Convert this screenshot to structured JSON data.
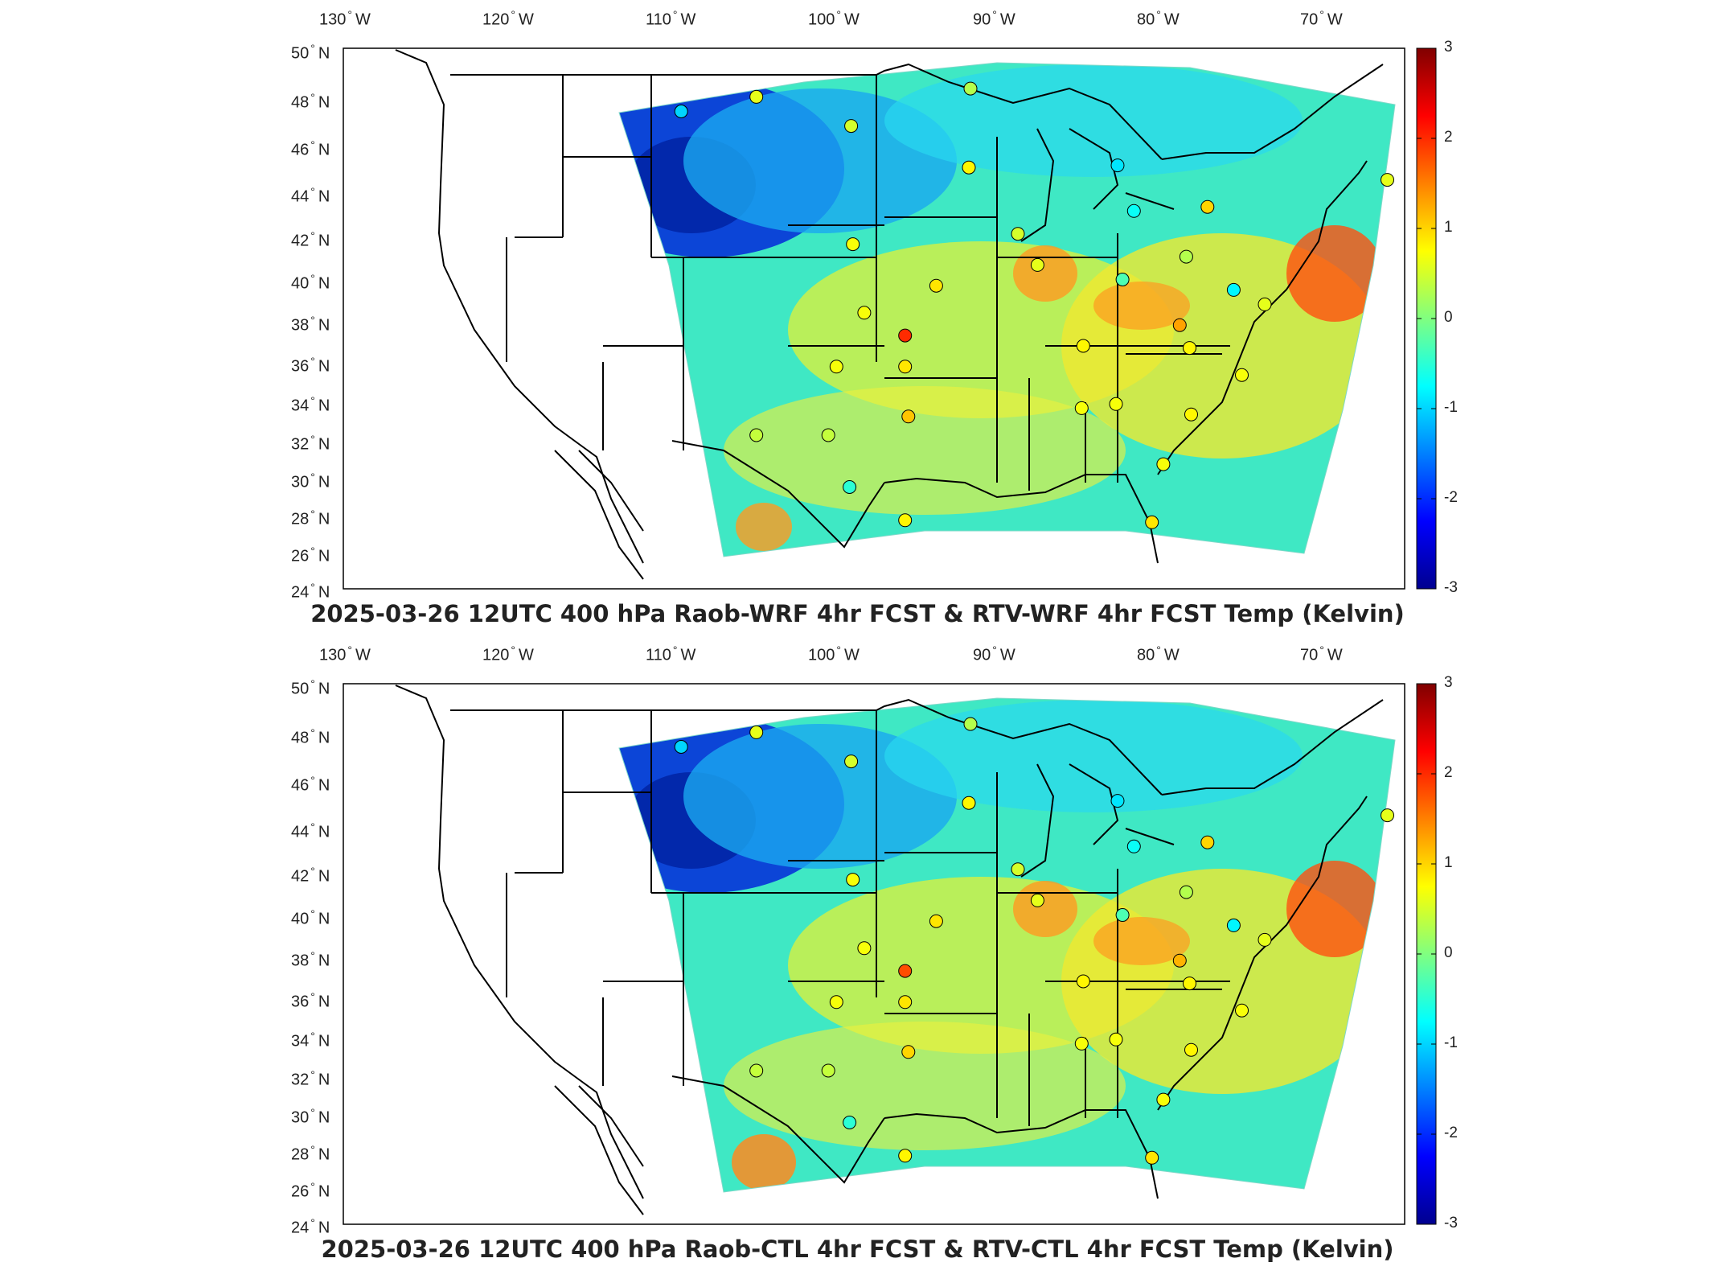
{
  "colors": {
    "colormap": [
      "#00008f",
      "#0000ff",
      "#0080ff",
      "#00ffff",
      "#80ff80",
      "#ffff00",
      "#ff8000",
      "#ff0000",
      "#800000"
    ],
    "map_lines": "#000000",
    "frame": "#000000"
  },
  "colorbar": {
    "min": -3,
    "max": 3,
    "ticks": [
      "3",
      "2",
      "1",
      "0",
      "-1",
      "-2",
      "-3"
    ]
  },
  "lon_labels": [
    "130",
    "120",
    "110",
    "100",
    "90",
    "80",
    "70"
  ],
  "lon_suffix": "W",
  "lat_labels": [
    "50",
    "48",
    "46",
    "44",
    "42",
    "40",
    "38",
    "36",
    "34",
    "32",
    "30",
    "28",
    "26",
    "24"
  ],
  "lat_suffix": "N",
  "panels": [
    {
      "title": "2025-03-26 12UTC 400 hPa Raob-WRF 4hr FCST & RTV-WRF 4hr FCST Temp (Kelvin)",
      "stations": [
        {
          "lon": -111.2,
          "lat": 47.5,
          "value": -1.0
        },
        {
          "lon": -106.6,
          "lat": 48.2,
          "value": 0.6
        },
        {
          "lon": -100.8,
          "lat": 46.8,
          "value": 0.5
        },
        {
          "lon": -93.5,
          "lat": 48.6,
          "value": 0.3
        },
        {
          "lon": -93.6,
          "lat": 44.8,
          "value": 0.8
        },
        {
          "lon": -84.5,
          "lat": 44.9,
          "value": -0.9
        },
        {
          "lon": -83.5,
          "lat": 42.7,
          "value": -0.7
        },
        {
          "lon": -79.0,
          "lat": 42.9,
          "value": 1.0
        },
        {
          "lon": -68.0,
          "lat": 44.2,
          "value": 0.6
        },
        {
          "lon": -100.7,
          "lat": 41.1,
          "value": 0.7
        },
        {
          "lon": -90.6,
          "lat": 41.6,
          "value": 0.5
        },
        {
          "lon": -89.4,
          "lat": 40.1,
          "value": 0.6
        },
        {
          "lon": -84.2,
          "lat": 39.4,
          "value": -0.3
        },
        {
          "lon": -80.3,
          "lat": 40.5,
          "value": 0.3
        },
        {
          "lon": -77.4,
          "lat": 38.9,
          "value": -0.8
        },
        {
          "lon": -75.5,
          "lat": 38.2,
          "value": 0.6
        },
        {
          "lon": -95.6,
          "lat": 39.1,
          "value": 0.9
        },
        {
          "lon": -100.0,
          "lat": 37.8,
          "value": 0.7
        },
        {
          "lon": -97.5,
          "lat": 36.7,
          "value": 2.0
        },
        {
          "lon": -97.5,
          "lat": 35.2,
          "value": 0.9
        },
        {
          "lon": -101.7,
          "lat": 35.2,
          "value": 0.7
        },
        {
          "lon": -97.3,
          "lat": 32.8,
          "value": 1.1
        },
        {
          "lon": -86.6,
          "lat": 36.2,
          "value": 0.8
        },
        {
          "lon": -80.7,
          "lat": 37.2,
          "value": 1.3
        },
        {
          "lon": -80.1,
          "lat": 36.1,
          "value": 0.8
        },
        {
          "lon": -76.9,
          "lat": 34.8,
          "value": 0.7
        },
        {
          "lon": -86.7,
          "lat": 33.2,
          "value": 0.7
        },
        {
          "lon": -84.6,
          "lat": 33.4,
          "value": 0.7
        },
        {
          "lon": -80.0,
          "lat": 32.9,
          "value": 0.8
        },
        {
          "lon": -81.7,
          "lat": 30.5,
          "value": 0.7
        },
        {
          "lon": -106.6,
          "lat": 31.9,
          "value": 0.4
        },
        {
          "lon": -102.2,
          "lat": 31.9,
          "value": 0.4
        },
        {
          "lon": -100.9,
          "lat": 29.4,
          "value": -0.5
        },
        {
          "lon": -97.5,
          "lat": 27.8,
          "value": 0.8
        },
        {
          "lon": -82.4,
          "lat": 27.7,
          "value": 0.9
        }
      ]
    },
    {
      "title": "2025-03-26 12UTC 400 hPa Raob-CTL 4hr FCST & RTV-CTL 4hr FCST Temp (Kelvin)",
      "stations": [
        {
          "lon": -111.2,
          "lat": 47.5,
          "value": -1.0
        },
        {
          "lon": -106.6,
          "lat": 48.2,
          "value": 0.6
        },
        {
          "lon": -100.8,
          "lat": 46.8,
          "value": 0.5
        },
        {
          "lon": -93.5,
          "lat": 48.6,
          "value": 0.3
        },
        {
          "lon": -93.6,
          "lat": 44.8,
          "value": 0.8
        },
        {
          "lon": -84.5,
          "lat": 44.9,
          "value": -0.9
        },
        {
          "lon": -83.5,
          "lat": 42.7,
          "value": -0.7
        },
        {
          "lon": -79.0,
          "lat": 42.9,
          "value": 1.0
        },
        {
          "lon": -68.0,
          "lat": 44.2,
          "value": 0.6
        },
        {
          "lon": -100.7,
          "lat": 41.1,
          "value": 0.7
        },
        {
          "lon": -90.6,
          "lat": 41.6,
          "value": 0.5
        },
        {
          "lon": -89.4,
          "lat": 40.1,
          "value": 0.6
        },
        {
          "lon": -84.2,
          "lat": 39.4,
          "value": -0.3
        },
        {
          "lon": -80.3,
          "lat": 40.5,
          "value": 0.3
        },
        {
          "lon": -77.4,
          "lat": 38.9,
          "value": -0.8
        },
        {
          "lon": -75.5,
          "lat": 38.2,
          "value": 0.6
        },
        {
          "lon": -95.6,
          "lat": 39.1,
          "value": 0.9
        },
        {
          "lon": -100.0,
          "lat": 37.8,
          "value": 0.7
        },
        {
          "lon": -97.5,
          "lat": 36.7,
          "value": 1.8
        },
        {
          "lon": -97.5,
          "lat": 35.2,
          "value": 0.9
        },
        {
          "lon": -101.7,
          "lat": 35.2,
          "value": 0.7
        },
        {
          "lon": -97.3,
          "lat": 32.8,
          "value": 1.0
        },
        {
          "lon": -86.6,
          "lat": 36.2,
          "value": 0.8
        },
        {
          "lon": -80.7,
          "lat": 37.2,
          "value": 1.2
        },
        {
          "lon": -80.1,
          "lat": 36.1,
          "value": 0.8
        },
        {
          "lon": -76.9,
          "lat": 34.8,
          "value": 0.7
        },
        {
          "lon": -86.7,
          "lat": 33.2,
          "value": 0.7
        },
        {
          "lon": -84.6,
          "lat": 33.4,
          "value": 0.7
        },
        {
          "lon": -80.0,
          "lat": 32.9,
          "value": 0.8
        },
        {
          "lon": -81.7,
          "lat": 30.5,
          "value": 0.7
        },
        {
          "lon": -106.6,
          "lat": 31.9,
          "value": 0.4
        },
        {
          "lon": -102.2,
          "lat": 31.9,
          "value": 0.4
        },
        {
          "lon": -100.9,
          "lat": 29.4,
          "value": -0.5
        },
        {
          "lon": -97.5,
          "lat": 27.8,
          "value": 0.8
        },
        {
          "lon": -82.4,
          "lat": 27.7,
          "value": 0.9
        }
      ]
    }
  ]
}
